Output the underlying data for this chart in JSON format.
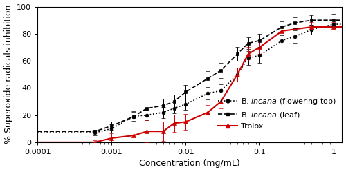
{
  "flowering_top_x": [
    0.0006,
    0.001,
    0.002,
    0.003,
    0.005,
    0.007,
    0.01,
    0.02,
    0.03,
    0.05,
    0.07,
    0.1,
    0.2,
    0.3,
    0.5,
    1.0
  ],
  "flowering_top_y": [
    7.0,
    10.0,
    19.0,
    20.0,
    22.0,
    25.0,
    28.0,
    36.0,
    38.0,
    50.0,
    62.0,
    64.0,
    75.0,
    78.0,
    83.0,
    87.0
  ],
  "flowering_top_err": [
    2.0,
    3.0,
    3.5,
    4.0,
    4.0,
    3.5,
    4.0,
    4.5,
    4.5,
    5.0,
    5.0,
    5.5,
    4.0,
    4.5,
    3.5,
    4.0
  ],
  "leaf_x": [
    0.0006,
    0.001,
    0.002,
    0.003,
    0.005,
    0.007,
    0.01,
    0.02,
    0.03,
    0.05,
    0.07,
    0.1,
    0.2,
    0.3,
    0.5,
    1.0
  ],
  "leaf_y": [
    8.0,
    12.0,
    19.0,
    25.0,
    27.0,
    30.0,
    37.0,
    47.0,
    53.0,
    65.0,
    73.0,
    75.0,
    85.0,
    88.0,
    90.0,
    90.0
  ],
  "leaf_err": [
    2.5,
    3.0,
    4.0,
    5.0,
    5.0,
    5.0,
    5.0,
    5.5,
    5.5,
    5.0,
    4.5,
    5.0,
    4.0,
    4.0,
    3.5,
    4.5
  ],
  "trolox_x": [
    0.0006,
    0.001,
    0.002,
    0.003,
    0.005,
    0.007,
    0.01,
    0.02,
    0.03,
    0.05,
    0.07,
    0.1,
    0.2,
    0.5,
    1.0
  ],
  "trolox_y": [
    0.0,
    3.0,
    5.0,
    8.0,
    8.0,
    14.0,
    15.0,
    22.0,
    30.0,
    50.0,
    65.0,
    70.0,
    82.0,
    85.0,
    85.0
  ],
  "trolox_err": [
    1.5,
    3.5,
    5.5,
    8.0,
    7.0,
    6.5,
    6.0,
    5.5,
    5.0,
    5.0,
    5.0,
    5.0,
    4.0,
    3.5,
    3.5
  ],
  "xlabel": "Concentration (mg/mL)",
  "ylabel": "% Superoxide radicals inhibition",
  "xlim_left": 0.0001,
  "xlim_right": 1.3,
  "ylim": [
    0,
    100
  ],
  "yticks": [
    0,
    20,
    40,
    60,
    80,
    100
  ],
  "xticks": [
    0.0001,
    0.001,
    0.01,
    0.1,
    1
  ],
  "flowering_color": "black",
  "leaf_color": "black",
  "trolox_color": "#cc0000",
  "background_color": "#ffffff",
  "font_size": 8,
  "label_fontsize": 9
}
